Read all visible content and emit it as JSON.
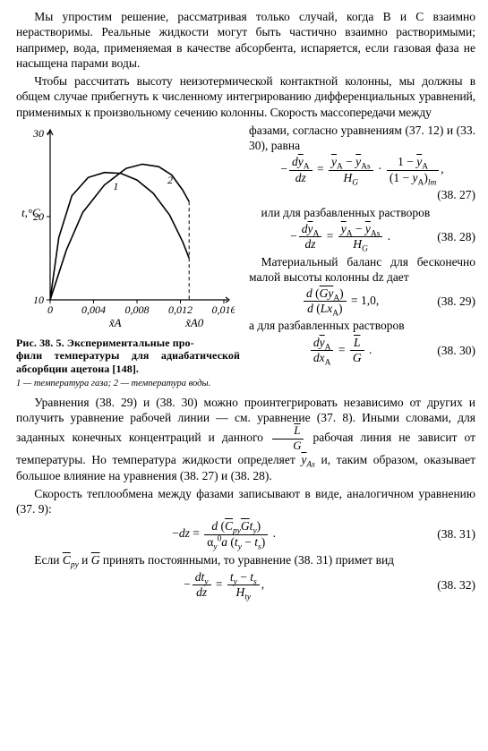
{
  "para1": "Мы упростим решение, рассматривая только случай, когда B и C взаимно нерастворимы. Реальные жидкости могут быть частично взаимно растворимыми; например, вода, применяемая в качестве абсорбента, испаряется, если газовая фаза не насыщена парами воды.",
  "para2_a": "Чтобы рассчитать высоту неизотермической контактной колонны, мы должны в общем случае прибегнуть к численному интегрированию дифференциальных уравнений, применимых к произвольному сечению колонны. Скорость массопередачи между ",
  "para2_float": "фазами, согласно уравнениям (37. 12) и (33. 30),  равна",
  "eq27_num": "(38. 27)",
  "right_txt_1": "или для разбавленных растворов",
  "eq28_num": "(38. 28)",
  "right_txt_2": "Материальный баланс для бесконечно малой высоты колонны dz дает",
  "eq29_num": "(38. 29)",
  "right_txt_3": "а для разбавленных растворов",
  "eq30_num": "(38. 30)",
  "caption_main_a": "Рис. 38. 5. Экспериментальные про-",
  "caption_main_b": "фили температуры для адиабатической абсорбции ацетона [148].",
  "caption_sub": "1 — температура газа;  2 — температура воды.",
  "para3": "Уравнения (38. 29) и (38. 30) можно проинтегрировать независимо от других и получить уравнение рабочей линии — см. уравнение (37. 8). Иными словами, для заданных конечных концентраций и данного  L̄/Ḡ  рабочая линия не зависит от температуры. Но температура жидкости определяет  ȳAs  и, таким образом, оказывает большое влияние на уравнения (38. 27) и (38. 28).",
  "para4": "Скорость теплообмена между фазами записывают в виде, аналогичном уравнению (37. 9):",
  "eq31_num": "(38. 31)",
  "para5": "Если C̄py и Ḡ принять постоянными, то уравнение (38. 31) примет вид",
  "eq32_num": "(38. 32)",
  "chart": {
    "type": "line",
    "ylabel": "t,°C",
    "y_ticks": [
      10,
      20,
      30
    ],
    "x_ticks_labels": [
      "0",
      "0,004",
      "0,008",
      "0,012",
      "0,016"
    ],
    "x_ticks_vals": [
      0,
      0.004,
      0.008,
      0.012,
      0.016
    ],
    "xlim": [
      0,
      0.016
    ],
    "ylim": [
      10,
      30
    ],
    "axis_xlabel_left": "x̃A",
    "axis_xlabel_right": "x̃A0",
    "dashed_x": 0.0128,
    "series": [
      {
        "label": "1",
        "points": [
          [
            0.0,
            10.0
          ],
          [
            0.0008,
            17.5
          ],
          [
            0.002,
            22.5
          ],
          [
            0.0035,
            24.7
          ],
          [
            0.005,
            25.3
          ],
          [
            0.0065,
            25.2
          ],
          [
            0.008,
            24.4
          ],
          [
            0.0095,
            22.8
          ],
          [
            0.011,
            20.2
          ],
          [
            0.0122,
            17.0
          ],
          [
            0.0128,
            15.0
          ]
        ],
        "color": "#000000",
        "line_width": 1.6
      },
      {
        "label": "2",
        "points": [
          [
            0.0,
            10.0
          ],
          [
            0.0015,
            16.0
          ],
          [
            0.003,
            20.5
          ],
          [
            0.005,
            23.8
          ],
          [
            0.007,
            25.8
          ],
          [
            0.0085,
            26.3
          ],
          [
            0.01,
            26.0
          ],
          [
            0.0112,
            25.0
          ],
          [
            0.0122,
            23.2
          ],
          [
            0.0128,
            21.8
          ]
        ],
        "color": "#000000",
        "line_width": 1.6
      }
    ],
    "background": "#ffffff",
    "axis_color": "#000000",
    "tick_fontsize": 12,
    "label_fontsize": 13
  }
}
